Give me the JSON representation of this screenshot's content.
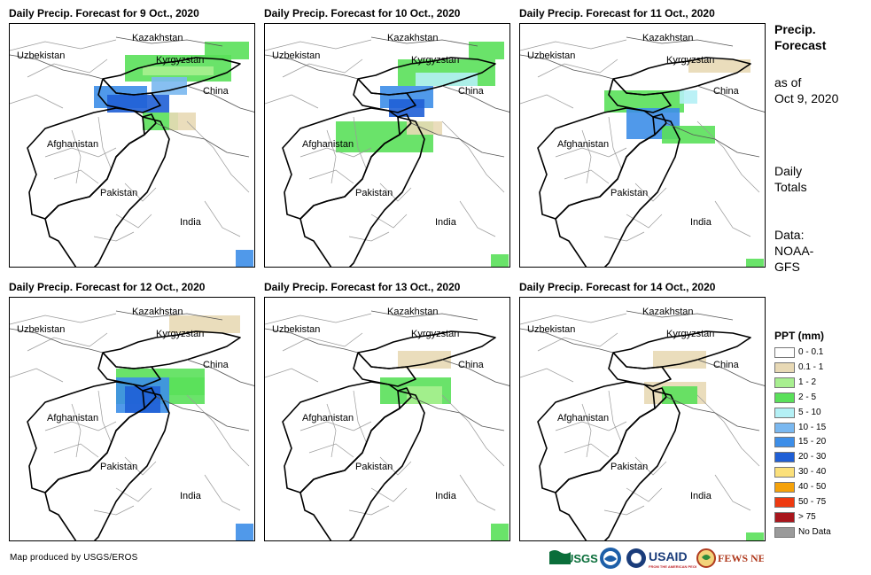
{
  "panels": [
    {
      "title": "Daily Precip. Forecast for 9 Oct., 2020"
    },
    {
      "title": "Daily Precip. Forecast for 10 Oct., 2020"
    },
    {
      "title": "Daily Precip. Forecast for 11 Oct., 2020"
    },
    {
      "title": "Daily Precip. Forecast for 12 Oct., 2020"
    },
    {
      "title": "Daily Precip. Forecast for 13 Oct., 2020"
    },
    {
      "title": "Daily Precip. Forecast for 14 Oct., 2020"
    }
  ],
  "countries": {
    "kazakhstan": "Kazakhstan",
    "uzbekistan": "Uzbekistan",
    "kyrgyzstan": "Kyrgyzstan",
    "china": "China",
    "afghanistan": "Afghanistan",
    "pakistan": "Pakistan",
    "india": "India"
  },
  "sidebar": {
    "title_line1": "Precip.",
    "title_line2": "Forecast",
    "asof_line1": "as of",
    "asof_line2": "Oct 9, 2020",
    "totals_line1": "Daily",
    "totals_line2": "Totals",
    "data_line1": "Data:",
    "data_line2": "NOAA-",
    "data_line3": "GFS"
  },
  "legend": {
    "title": "PPT (mm)",
    "items": [
      {
        "label": "0 - 0.1",
        "color": "#ffffff"
      },
      {
        "label": "0.1 - 1",
        "color": "#e8d9b5"
      },
      {
        "label": "1 - 2",
        "color": "#a8ef90"
      },
      {
        "label": "2 - 5",
        "color": "#5ae05a"
      },
      {
        "label": "5 - 10",
        "color": "#b4f0f5"
      },
      {
        "label": "10 - 15",
        "color": "#7ab8f0"
      },
      {
        "label": "15 - 20",
        "color": "#3d8ee8"
      },
      {
        "label": "20 - 30",
        "color": "#1f5fd6"
      },
      {
        "label": "30 - 40",
        "color": "#fbe07a"
      },
      {
        "label": "40 - 50",
        "color": "#f5a20a"
      },
      {
        "label": "50 - 75",
        "color": "#ee3a10"
      },
      {
        "label": "> 75",
        "color": "#a8161c"
      },
      {
        "label": "No Data",
        "color": "#9a9a9a"
      }
    ]
  },
  "credit": "Map produced by USGS/EROS",
  "logos": {
    "usgs": "USGS",
    "usaid": "USAID",
    "fewsnet": "FEWS NET"
  }
}
